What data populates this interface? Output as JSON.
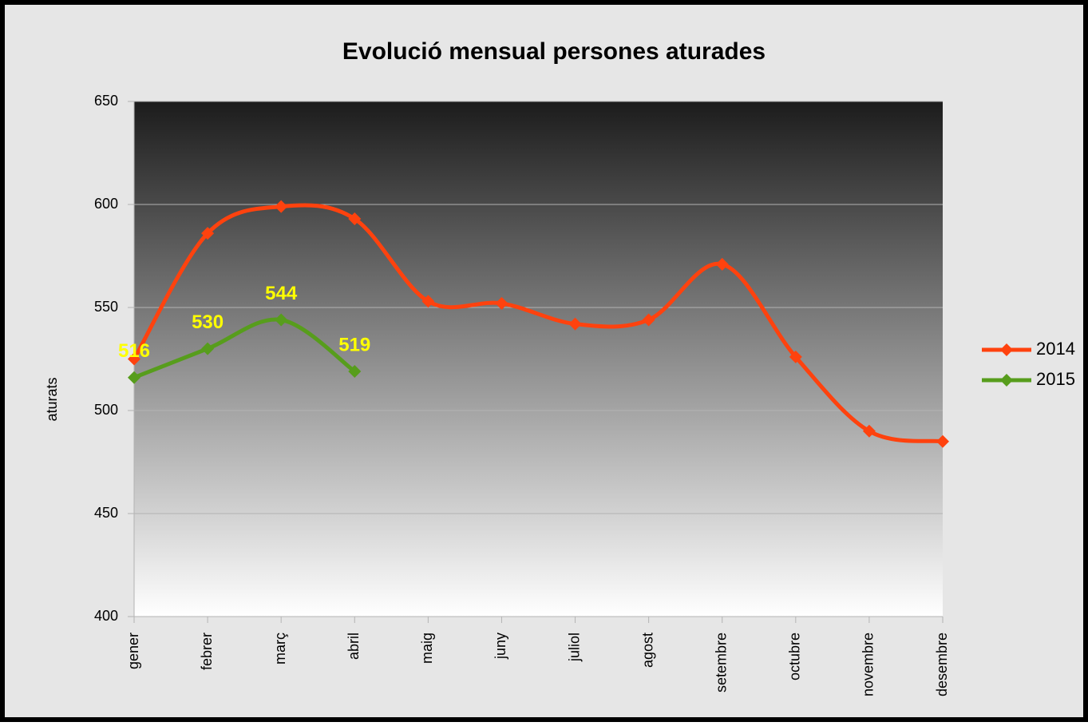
{
  "chart_data": {
    "type": "line",
    "title": "Evolució mensual persones aturades",
    "y_label": "aturats",
    "categories": [
      "gener",
      "febrer",
      "març",
      "abril",
      "maig",
      "juny",
      "juliol",
      "agost",
      "setembre",
      "octubre",
      "novembre",
      "desembre"
    ],
    "series": [
      {
        "name": "2014",
        "color": "#ff420e",
        "values": [
          525,
          586,
          599,
          593,
          553,
          552,
          542,
          544,
          571,
          526,
          490,
          485
        ]
      },
      {
        "name": "2015",
        "color": "#579d1c",
        "values": [
          516,
          530,
          544,
          519,
          null,
          null,
          null,
          null,
          null,
          null,
          null,
          null
        ],
        "data_labels": true
      }
    ],
    "ylim": [
      400,
      650
    ],
    "yticks": [
      400,
      450,
      500,
      550,
      600,
      650
    ],
    "grid": true,
    "smooth": true,
    "legend": "right"
  }
}
